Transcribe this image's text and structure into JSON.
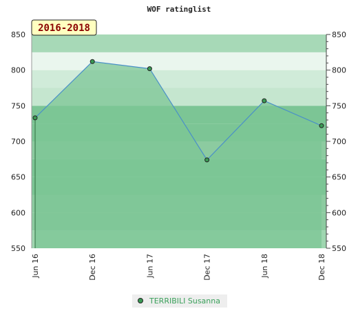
{
  "chart_data": {
    "type": "area",
    "title": "WOF ratinglist",
    "badge": "2016-2018",
    "x": [
      "Jun 16",
      "Dec 16",
      "Jun 17",
      "Dec 17",
      "Jun 18",
      "Dec 18"
    ],
    "series": [
      {
        "name": "TERRIBILI Susanna",
        "values": [
          733,
          812,
          802,
          674,
          757,
          722
        ]
      }
    ],
    "ylim": [
      550,
      850
    ],
    "yticks": [
      550,
      600,
      650,
      700,
      750,
      800,
      850
    ],
    "grid": true,
    "legend": "bottom",
    "colors": {
      "area_fill": "#7cc595",
      "line": "#4a90c8",
      "marker": "#3a9a55",
      "badge_bg": "#ffffc0",
      "band_colors": [
        "#9fd6b0",
        "#8ccba0",
        "#7cc595",
        "#a7d9b7",
        "#c5e6cf",
        "#eaf6ee",
        "#d0ebd9",
        "#b5e0c2"
      ]
    }
  }
}
